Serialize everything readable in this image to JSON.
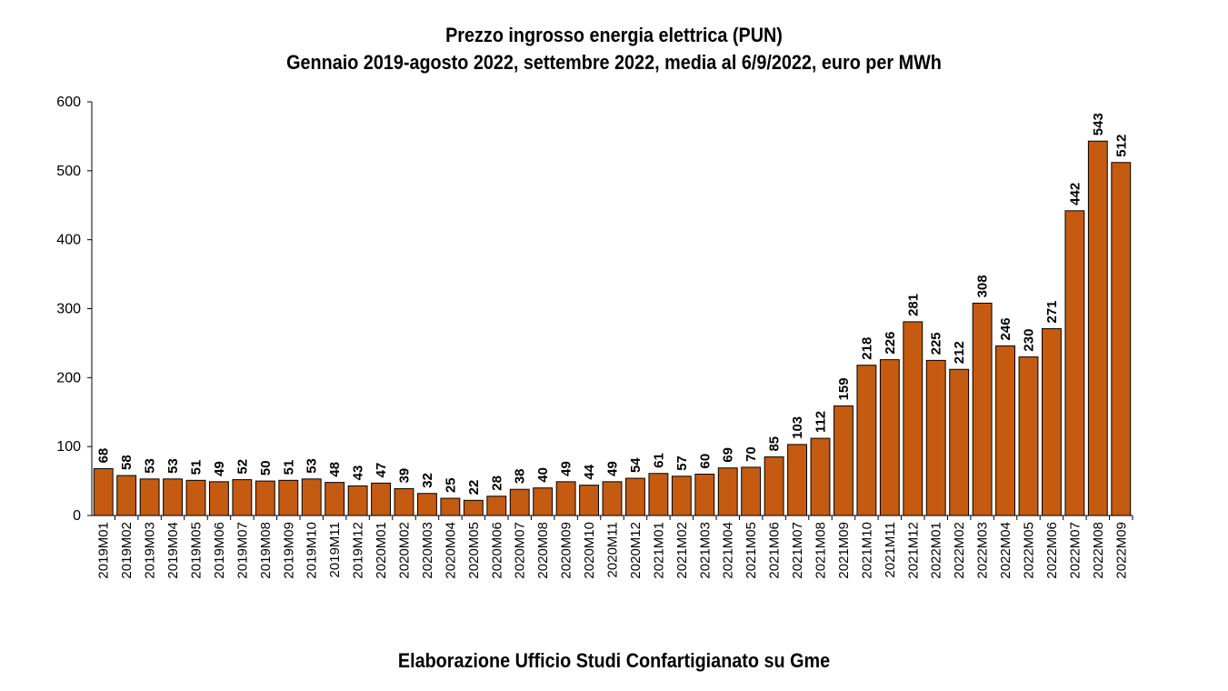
{
  "chart_data": {
    "type": "bar",
    "title": "Prezzo ingrosso energia elettrica (PUN)",
    "subtitle": "Gennaio 2019-agosto 2022, settembre 2022, media al 6/9/2022, euro per MWh",
    "source": "Elaborazione Ufficio Studi Confartigianato su Gme",
    "categories": [
      "2019M01",
      "2019M02",
      "2019M03",
      "2019M04",
      "2019M05",
      "2019M06",
      "2019M07",
      "2019M08",
      "2019M09",
      "2019M10",
      "2019M11",
      "2019M12",
      "2020M01",
      "2020M02",
      "2020M03",
      "2020M04",
      "2020M05",
      "2020M06",
      "2020M07",
      "2020M08",
      "2020M09",
      "2020M10",
      "2020M11",
      "2020M12",
      "2021M01",
      "2021M02",
      "2021M03",
      "2021M04",
      "2021M05",
      "2021M06",
      "2021M07",
      "2021M08",
      "2021M09",
      "2021M10",
      "2021M11",
      "2021M12",
      "2022M01",
      "2022M02",
      "2022M03",
      "2022M04",
      "2022M05",
      "2022M06",
      "2022M07",
      "2022M08",
      "2022M09"
    ],
    "values": [
      68,
      58,
      53,
      53,
      51,
      49,
      52,
      50,
      51,
      53,
      48,
      43,
      47,
      39,
      32,
      25,
      22,
      28,
      38,
      40,
      49,
      44,
      49,
      54,
      61,
      57,
      60,
      69,
      70,
      85,
      103,
      112,
      159,
      218,
      226,
      281,
      225,
      212,
      308,
      246,
      230,
      271,
      442,
      543,
      512
    ],
    "ylim": [
      0,
      600
    ],
    "yticks": [
      0,
      100,
      200,
      300,
      400,
      500,
      600
    ],
    "bar_color": "#c55a11",
    "bar_edge_color": "#000000",
    "grid": false,
    "legend": "none"
  }
}
